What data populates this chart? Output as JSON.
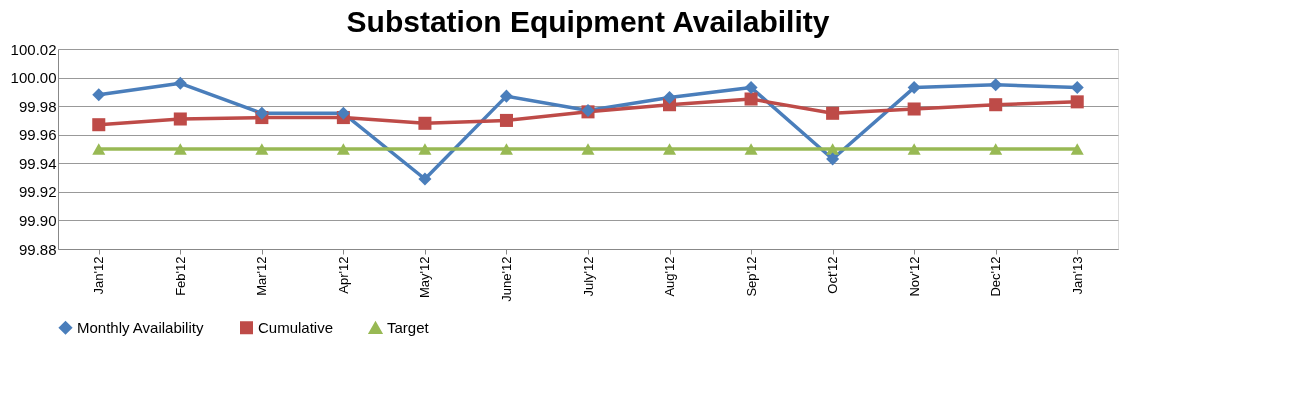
{
  "chart_data": {
    "type": "line",
    "title": "Substation Equipment Availability",
    "categories": [
      "Jan'12",
      "Feb'12",
      "Mar'12",
      "Apr'12",
      "May'12",
      "June'12",
      "July'12",
      "Aug'12",
      "Sep'12",
      "Oct'12",
      "Nov'12",
      "Dec'12",
      "Jan'13"
    ],
    "series": [
      {
        "name": "Monthly Availability",
        "color": "#4a7ebb",
        "marker": "diamond",
        "values": [
          99.988,
          99.996,
          99.975,
          99.975,
          99.929,
          99.987,
          99.977,
          99.986,
          99.993,
          99.943,
          99.993,
          99.995,
          99.993
        ]
      },
      {
        "name": "Cumulative",
        "color": "#be4b48",
        "marker": "square",
        "values": [
          99.967,
          99.971,
          99.972,
          99.972,
          99.968,
          99.97,
          99.976,
          99.981,
          99.985,
          99.975,
          99.978,
          99.981,
          99.983
        ]
      },
      {
        "name": "Target",
        "color": "#98b954",
        "marker": "triangle",
        "values": [
          99.95,
          99.95,
          99.95,
          99.95,
          99.95,
          99.95,
          99.95,
          99.95,
          99.95,
          99.95,
          99.95,
          99.95,
          99.95
        ]
      }
    ],
    "ylim": [
      99.88,
      100.02
    ],
    "yticks": [
      {
        "value": 99.88,
        "label": "99.88"
      },
      {
        "value": 99.9,
        "label": "99.90"
      },
      {
        "value": 99.92,
        "label": "99.92"
      },
      {
        "value": 99.94,
        "label": "99.94"
      },
      {
        "value": 99.96,
        "label": "99.96"
      },
      {
        "value": 99.98,
        "label": "99.98"
      },
      {
        "value": 100.0,
        "label": "100.00"
      },
      {
        "value": 100.02,
        "label": "100.02"
      }
    ],
    "grid": "y",
    "legend": "bottom",
    "line_style": "solid"
  }
}
